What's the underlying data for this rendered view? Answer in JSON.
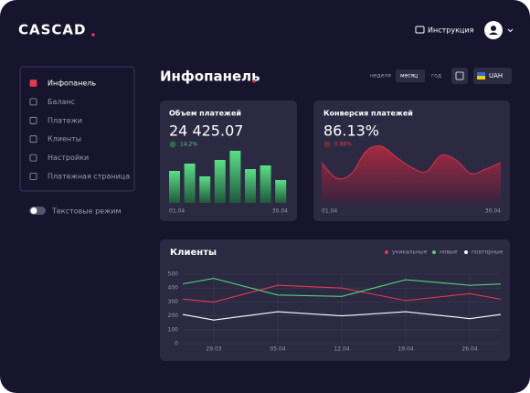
{
  "header": {
    "logo": "CASCAD",
    "instructions": "Инструкция"
  },
  "sidebar": {
    "items": [
      "Инфопанель",
      "Баланс",
      "Платежи",
      "Клиенты",
      "Настройки",
      "Платежная страница"
    ],
    "toggle": "Текстовые режим"
  },
  "page_title": "Инфопанель",
  "filters": {
    "periods": [
      "неделя",
      "месяц",
      "год"
    ],
    "currency": "UAH"
  },
  "payments_card": {
    "title": "Объем платежей",
    "amount": "24 425.07",
    "change": "14.2%",
    "values": [
      35,
      43,
      29,
      47,
      57,
      37,
      41,
      25
    ],
    "x_labels": [
      "01.04",
      "30.04"
    ]
  },
  "conversion_card": {
    "title": "Конверсия платежей",
    "amount": "86.13%",
    "change": "0.88%",
    "values": [
      44,
      27,
      32,
      57,
      62,
      50,
      39,
      34,
      52,
      47,
      32,
      37,
      44
    ],
    "x_labels": [
      "01.04",
      "30.04"
    ]
  },
  "clients_chart": {
    "type": "line",
    "title": "Клиенты",
    "categories": [
      null,
      "29.03",
      "05.04",
      "12.04",
      "19.04",
      "26.04",
      null
    ],
    "series": [
      {
        "name": "уникальные",
        "color": "#e5384d",
        "values": [
          320,
          300,
          420,
          400,
          310,
          360,
          320
        ]
      },
      {
        "name": "новые",
        "color": "#4fd17a",
        "values": [
          430,
          470,
          350,
          340,
          460,
          420,
          430
        ]
      },
      {
        "name": "повторные",
        "color": "#ffffff",
        "values": [
          210,
          170,
          230,
          200,
          230,
          180,
          210
        ]
      }
    ],
    "ylim": [
      0,
      500
    ],
    "yticks": [
      0,
      100,
      200,
      300,
      400,
      500
    ],
    "grid": true
  }
}
